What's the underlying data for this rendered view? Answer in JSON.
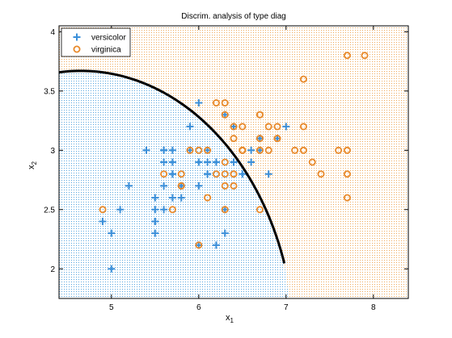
{
  "chart_data": {
    "type": "scatter",
    "title": "Discrim. analysis of type diag",
    "xlabel": "x",
    "xlabel_sub": "1",
    "ylabel": "x",
    "ylabel_sub": "2",
    "xlim": [
      4.4,
      8.4
    ],
    "ylim": [
      1.75,
      4.05
    ],
    "xticks": [
      5,
      6,
      7,
      8
    ],
    "yticks": [
      2,
      2.5,
      3,
      3.5,
      4
    ],
    "grid": false,
    "legend_position": "top-left",
    "regions": [
      {
        "name": "versicolor",
        "color": "#3b8fd9",
        "background": "#d6ecf7"
      },
      {
        "name": "virginica",
        "color": "#e8892a",
        "background": "#fbe8cc"
      }
    ],
    "boundary": {
      "center": [
        4.65,
        1.32
      ],
      "radius_x": 2.45,
      "radius_y": 2.35,
      "color": "#000000"
    },
    "series": [
      {
        "name": "versicolor",
        "marker": "plus",
        "color": "#3b8fd9",
        "points": [
          [
            7.0,
            3.2
          ],
          [
            6.4,
            3.2
          ],
          [
            6.9,
            3.1
          ],
          [
            5.5,
            2.3
          ],
          [
            6.5,
            2.8
          ],
          [
            5.7,
            2.8
          ],
          [
            6.3,
            3.3
          ],
          [
            4.9,
            2.4
          ],
          [
            6.6,
            2.9
          ],
          [
            5.2,
            2.7
          ],
          [
            5.0,
            2.0
          ],
          [
            5.9,
            3.0
          ],
          [
            6.0,
            2.2
          ],
          [
            6.1,
            2.9
          ],
          [
            5.6,
            2.9
          ],
          [
            6.7,
            3.1
          ],
          [
            5.6,
            3.0
          ],
          [
            5.8,
            2.7
          ],
          [
            6.2,
            2.2
          ],
          [
            5.6,
            2.5
          ],
          [
            5.9,
            3.2
          ],
          [
            6.1,
            2.8
          ],
          [
            6.3,
            2.5
          ],
          [
            6.1,
            2.8
          ],
          [
            6.4,
            2.9
          ],
          [
            6.6,
            3.0
          ],
          [
            6.8,
            2.8
          ],
          [
            6.7,
            3.0
          ],
          [
            6.0,
            2.9
          ],
          [
            5.7,
            2.6
          ],
          [
            5.5,
            2.4
          ],
          [
            5.5,
            2.4
          ],
          [
            5.8,
            2.7
          ],
          [
            6.0,
            2.7
          ],
          [
            5.4,
            3.0
          ],
          [
            6.0,
            3.4
          ],
          [
            6.7,
            3.1
          ],
          [
            6.3,
            2.3
          ],
          [
            5.6,
            3.0
          ],
          [
            5.5,
            2.5
          ],
          [
            5.5,
            2.6
          ],
          [
            6.1,
            3.0
          ],
          [
            5.8,
            2.6
          ],
          [
            5.0,
            2.3
          ],
          [
            5.6,
            2.7
          ],
          [
            5.7,
            3.0
          ],
          [
            5.7,
            2.9
          ],
          [
            6.2,
            2.9
          ],
          [
            5.1,
            2.5
          ],
          [
            5.7,
            2.8
          ]
        ]
      },
      {
        "name": "virginica",
        "marker": "circle",
        "color": "#e8892a",
        "points": [
          [
            6.3,
            3.3
          ],
          [
            5.8,
            2.7
          ],
          [
            7.1,
            3.0
          ],
          [
            6.3,
            2.9
          ],
          [
            6.5,
            3.0
          ],
          [
            7.6,
            3.0
          ],
          [
            4.9,
            2.5
          ],
          [
            7.3,
            2.9
          ],
          [
            6.7,
            2.5
          ],
          [
            7.2,
            3.6
          ],
          [
            6.5,
            3.2
          ],
          [
            6.4,
            2.7
          ],
          [
            6.8,
            3.0
          ],
          [
            5.7,
            2.5
          ],
          [
            5.8,
            2.8
          ],
          [
            6.4,
            3.2
          ],
          [
            6.5,
            3.0
          ],
          [
            7.7,
            3.8
          ],
          [
            7.7,
            2.6
          ],
          [
            6.0,
            2.2
          ],
          [
            6.9,
            3.2
          ],
          [
            5.6,
            2.8
          ],
          [
            7.7,
            2.8
          ],
          [
            6.3,
            2.7
          ],
          [
            6.7,
            3.3
          ],
          [
            7.2,
            3.2
          ],
          [
            6.2,
            2.8
          ],
          [
            6.1,
            3.0
          ],
          [
            6.4,
            2.8
          ],
          [
            7.2,
            3.0
          ],
          [
            7.4,
            2.8
          ],
          [
            7.9,
            3.8
          ],
          [
            6.4,
            2.8
          ],
          [
            6.3,
            2.8
          ],
          [
            6.1,
            2.6
          ],
          [
            7.7,
            3.0
          ],
          [
            6.3,
            3.4
          ],
          [
            6.4,
            3.1
          ],
          [
            6.0,
            3.0
          ],
          [
            6.9,
            3.1
          ],
          [
            6.7,
            3.1
          ],
          [
            6.9,
            3.1
          ],
          [
            5.8,
            2.7
          ],
          [
            6.8,
            3.2
          ],
          [
            6.7,
            3.3
          ],
          [
            6.7,
            3.0
          ],
          [
            6.3,
            2.5
          ],
          [
            6.5,
            3.0
          ],
          [
            6.2,
            3.4
          ],
          [
            5.9,
            3.0
          ]
        ]
      }
    ]
  }
}
